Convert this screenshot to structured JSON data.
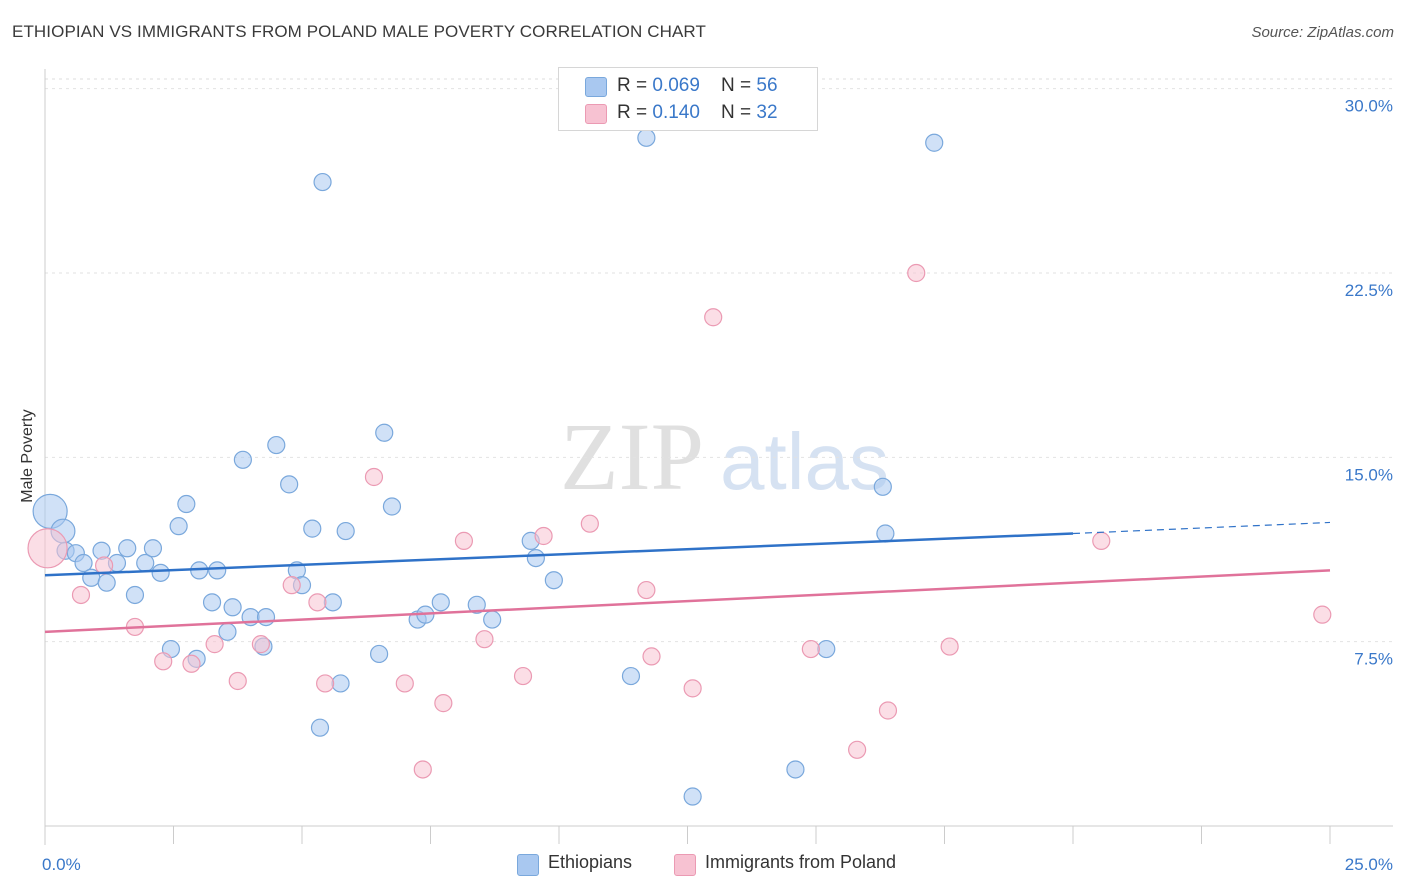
{
  "chart_data": {
    "type": "scatter",
    "title": "ETHIOPIAN VS IMMIGRANTS FROM POLAND MALE POVERTY CORRELATION CHART",
    "source": "Source: ZipAtlas.com",
    "xlabel": "",
    "ylabel": "Male Poverty",
    "xlim": [
      0,
      25
    ],
    "ylim": [
      0,
      30.8
    ],
    "x_tick_labels": {
      "left": "0.0%",
      "right": "25.0%"
    },
    "y_ticks": [
      {
        "value": 7.5,
        "label": "7.5%"
      },
      {
        "value": 15.0,
        "label": "15.0%"
      },
      {
        "value": 22.5,
        "label": "22.5%"
      },
      {
        "value": 30.0,
        "label": "30.0%"
      }
    ],
    "watermark": {
      "zip": "ZIP",
      "atlas": "atlas"
    },
    "series": [
      {
        "name": "Ethiopians",
        "color": "#a9c8f0",
        "stroke": "#7aa8dc",
        "line_color": "#2f72c8",
        "r_label": "R = ",
        "r_value": "0.069",
        "n_label": "N = ",
        "n_value": "56",
        "trend": {
          "x0": 0,
          "y0": 10.2,
          "x1": 20,
          "y1": 11.9,
          "dash_to_x": 25,
          "dash_to_y": 12.35
        },
        "points": [
          [
            0.1,
            12.8,
            2
          ],
          [
            0.35,
            12.0,
            1.4
          ],
          [
            0.4,
            11.2,
            1
          ],
          [
            0.6,
            11.1,
            1
          ],
          [
            0.75,
            10.7,
            1
          ],
          [
            0.9,
            10.1,
            1
          ],
          [
            1.1,
            11.2,
            1
          ],
          [
            1.2,
            9.9,
            1
          ],
          [
            1.4,
            10.7,
            1
          ],
          [
            1.6,
            11.3,
            1
          ],
          [
            1.75,
            9.4,
            1
          ],
          [
            1.95,
            10.7,
            1
          ],
          [
            2.1,
            11.3,
            1
          ],
          [
            2.25,
            10.3,
            1
          ],
          [
            2.45,
            7.2,
            1
          ],
          [
            2.6,
            12.2,
            1
          ],
          [
            2.75,
            13.1,
            1
          ],
          [
            2.95,
            6.8,
            1
          ],
          [
            3.0,
            10.4,
            1
          ],
          [
            3.25,
            9.1,
            1
          ],
          [
            3.35,
            10.4,
            1
          ],
          [
            3.55,
            7.9,
            1
          ],
          [
            3.65,
            8.9,
            1
          ],
          [
            3.85,
            14.9,
            1
          ],
          [
            4.0,
            8.5,
            1
          ],
          [
            4.25,
            7.3,
            1
          ],
          [
            4.3,
            8.5,
            1
          ],
          [
            4.5,
            15.5,
            1
          ],
          [
            4.75,
            13.9,
            1
          ],
          [
            4.9,
            10.4,
            1
          ],
          [
            5.0,
            9.8,
            1
          ],
          [
            5.2,
            12.1,
            1
          ],
          [
            5.35,
            4.0,
            1
          ],
          [
            5.4,
            26.2,
            1
          ],
          [
            5.6,
            9.1,
            1
          ],
          [
            5.75,
            5.8,
            1
          ],
          [
            5.85,
            12.0,
            1
          ],
          [
            6.5,
            7.0,
            1
          ],
          [
            6.6,
            16.0,
            1
          ],
          [
            6.75,
            13.0,
            1
          ],
          [
            7.25,
            8.4,
            1
          ],
          [
            7.4,
            8.6,
            1
          ],
          [
            7.7,
            9.1,
            1
          ],
          [
            8.4,
            9.0,
            1
          ],
          [
            8.7,
            8.4,
            1
          ],
          [
            9.45,
            11.6,
            1
          ],
          [
            9.55,
            10.9,
            1
          ],
          [
            9.9,
            10.0,
            1
          ],
          [
            11.4,
            6.1,
            1
          ],
          [
            11.7,
            28.0,
            1
          ],
          [
            12.6,
            1.2,
            1
          ],
          [
            14.6,
            2.3,
            1
          ],
          [
            15.2,
            7.2,
            1
          ],
          [
            16.3,
            13.8,
            1
          ],
          [
            16.35,
            11.9,
            1
          ],
          [
            17.3,
            27.8,
            1
          ]
        ]
      },
      {
        "name": "Immigrants from Poland",
        "color": "#f7c2d2",
        "stroke": "#eb9ab3",
        "line_color": "#e0729a",
        "r_label": "R = ",
        "r_value": "0.140",
        "n_label": "N = ",
        "n_value": "32",
        "trend": {
          "x0": 0,
          "y0": 7.9,
          "x1": 25,
          "y1": 10.4
        },
        "points": [
          [
            0.05,
            11.3,
            2.3
          ],
          [
            0.7,
            9.4,
            1
          ],
          [
            1.15,
            10.6,
            1
          ],
          [
            1.75,
            8.1,
            1
          ],
          [
            2.3,
            6.7,
            1
          ],
          [
            2.85,
            6.6,
            1
          ],
          [
            3.3,
            7.4,
            1
          ],
          [
            3.75,
            5.9,
            1
          ],
          [
            4.2,
            7.4,
            1
          ],
          [
            4.8,
            9.8,
            1
          ],
          [
            5.3,
            9.1,
            1
          ],
          [
            5.45,
            5.8,
            1
          ],
          [
            6.4,
            14.2,
            1
          ],
          [
            7.0,
            5.8,
            1
          ],
          [
            7.35,
            2.3,
            1
          ],
          [
            7.75,
            5.0,
            1
          ],
          [
            8.15,
            11.6,
            1
          ],
          [
            8.55,
            7.6,
            1
          ],
          [
            9.3,
            6.1,
            1
          ],
          [
            9.7,
            11.8,
            1
          ],
          [
            10.6,
            12.3,
            1
          ],
          [
            11.7,
            9.6,
            1
          ],
          [
            11.8,
            6.9,
            1
          ],
          [
            12.6,
            5.6,
            1
          ],
          [
            13.0,
            20.7,
            1
          ],
          [
            14.9,
            7.2,
            1
          ],
          [
            15.8,
            3.1,
            1
          ],
          [
            16.4,
            4.7,
            1
          ],
          [
            16.95,
            22.5,
            1
          ],
          [
            17.6,
            7.3,
            1
          ],
          [
            20.55,
            11.6,
            1
          ],
          [
            24.85,
            8.6,
            1
          ]
        ]
      }
    ]
  }
}
